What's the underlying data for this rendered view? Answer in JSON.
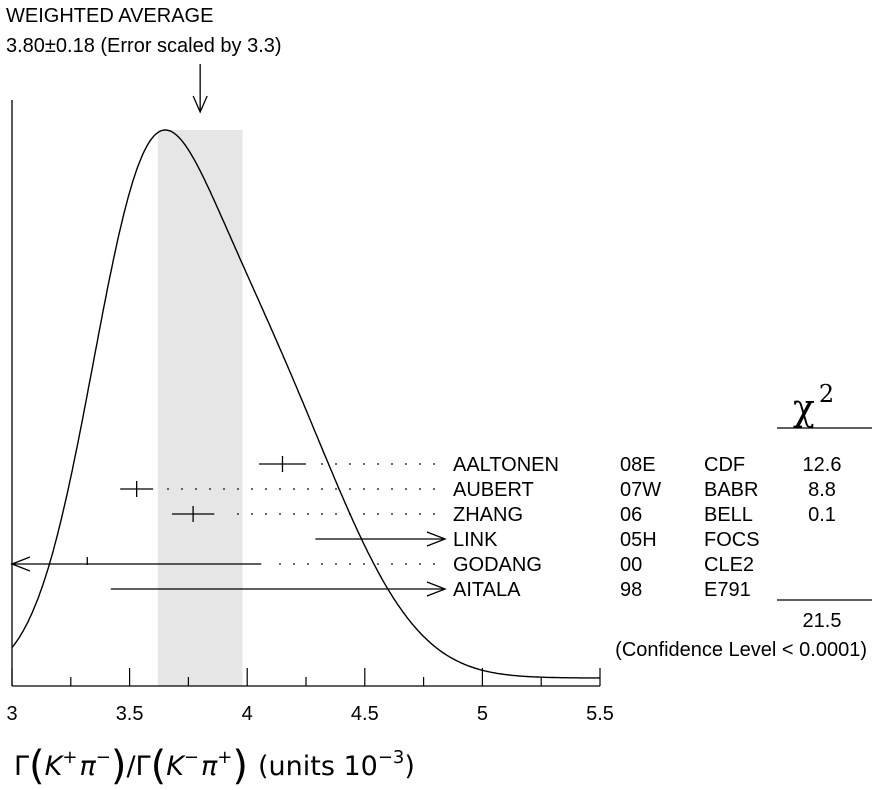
{
  "chart_data": {
    "type": "ideogram",
    "title": "WEIGHTED AVERAGE",
    "subtitle": "3.80±0.18 (Error scaled by 3.3)",
    "weighted_average": {
      "value": 3.8,
      "error": 0.18,
      "scale_factor": 3.3
    },
    "xlabel": {
      "gamma1": "Γ",
      "kaon1": "K",
      "kaon1_sup": "+",
      "pion1": "π",
      "pion1_sup": "−",
      "slash": "/",
      "gamma2": "Γ",
      "kaon2": "K",
      "kaon2_sup": "−",
      "pion2": "π",
      "pion2_sup": "+",
      "units": "(units 10",
      "units_exp": "−3",
      "units_close": ")"
    },
    "xlim": [
      3,
      5.5
    ],
    "xticks": [
      "3",
      "3.5",
      "4",
      "4.5",
      "5",
      "5.5"
    ],
    "xtick_values": [
      3,
      3.5,
      4,
      4.5,
      5,
      5.5
    ],
    "chi2_header": "χ",
    "chi2_header_exp": "2",
    "measurements": [
      {
        "name": "AALTONEN",
        "ref": "08E",
        "exp": "CDF",
        "value": 4.15,
        "error": 0.1,
        "chi2": "12.6",
        "in_fit": true
      },
      {
        "name": "AUBERT",
        "ref": "07W",
        "exp": "BABR",
        "value": 3.53,
        "error": 0.07,
        "chi2": "8.8",
        "in_fit": true
      },
      {
        "name": "ZHANG",
        "ref": "06",
        "exp": "BELL",
        "value": 3.77,
        "error": 0.09,
        "chi2": "0.1",
        "in_fit": true
      },
      {
        "name": "LINK",
        "ref": "05H",
        "exp": "FOCS",
        "value": 4.29,
        "error": 0.67,
        "chi2": "",
        "in_fit": false
      },
      {
        "name": "GODANG",
        "ref": "00",
        "exp": "CLE2",
        "value": 3.32,
        "error": 0.74,
        "chi2": "",
        "in_fit": false
      },
      {
        "name": "AITALA",
        "ref": "98",
        "exp": "E791",
        "value": 3.42,
        "error": 0.0,
        "chi2": "",
        "in_fit": false
      }
    ],
    "chi2_total": "21.5",
    "confidence_level": "(Confidence Level < 0.0001)"
  }
}
